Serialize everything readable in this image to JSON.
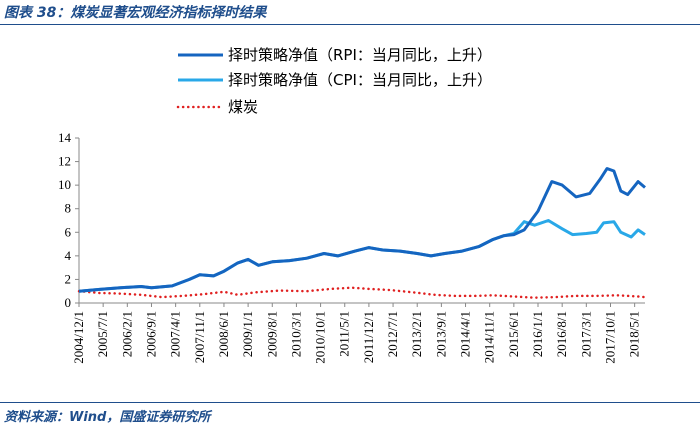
{
  "caption": "图表 38：煤炭显著宏观经济指标择时结果",
  "source": "资料来源：Wind，国盛证券研究所",
  "colors": {
    "rpi": "#1565c0",
    "cpi": "#29a8e8",
    "coal": "#e02020",
    "accent": "#1f4e8c"
  },
  "chart_data": {
    "type": "line",
    "title": "",
    "xlabel": "",
    "ylabel": "",
    "ylim": [
      0,
      14
    ],
    "yticks": [
      0,
      2,
      4,
      6,
      8,
      10,
      12,
      14
    ],
    "xlim": [
      "2004-12",
      "2018-08"
    ],
    "xticks": [
      "2004/12/1",
      "2005/7/1",
      "2006/2/1",
      "2006/9/1",
      "2007/4/1",
      "2007/11/1",
      "2008/6/1",
      "2009/1/1",
      "2009/8/1",
      "2010/3/1",
      "2010/10/1",
      "2011/5/1",
      "2011/12/1",
      "2012/7/1",
      "2013/2/1",
      "2013/9/1",
      "2014/4/1",
      "2014/11/1",
      "2015/6/1",
      "2016/1/1",
      "2016/8/1",
      "2017/3/1",
      "2017/10/1",
      "2018/5/1"
    ],
    "legend_position": "top-left",
    "grid": false,
    "series": [
      {
        "name": "择时策略净值（RPI：当月同比，上升）",
        "style": "solid",
        "color": "#1565c0",
        "points": [
          [
            "2004-12",
            1.0
          ],
          [
            "2005-06",
            1.15
          ],
          [
            "2005-12",
            1.3
          ],
          [
            "2006-06",
            1.4
          ],
          [
            "2006-09",
            1.3
          ],
          [
            "2007-03",
            1.45
          ],
          [
            "2007-08",
            2.0
          ],
          [
            "2007-11",
            2.4
          ],
          [
            "2008-03",
            2.3
          ],
          [
            "2008-06",
            2.7
          ],
          [
            "2008-10",
            3.4
          ],
          [
            "2009-01",
            3.7
          ],
          [
            "2009-04",
            3.2
          ],
          [
            "2009-08",
            3.5
          ],
          [
            "2010-01",
            3.6
          ],
          [
            "2010-06",
            3.8
          ],
          [
            "2010-11",
            4.2
          ],
          [
            "2011-03",
            4.0
          ],
          [
            "2011-08",
            4.4
          ],
          [
            "2011-12",
            4.7
          ],
          [
            "2012-04",
            4.5
          ],
          [
            "2012-09",
            4.4
          ],
          [
            "2013-02",
            4.2
          ],
          [
            "2013-06",
            4.0
          ],
          [
            "2013-10",
            4.2
          ],
          [
            "2014-03",
            4.4
          ],
          [
            "2014-08",
            4.8
          ],
          [
            "2014-12",
            5.4
          ],
          [
            "2015-03",
            5.7
          ],
          [
            "2015-06",
            5.8
          ],
          [
            "2015-09",
            6.2
          ],
          [
            "2016-01",
            7.8
          ],
          [
            "2016-05",
            10.3
          ],
          [
            "2016-08",
            10.0
          ],
          [
            "2016-12",
            9.0
          ],
          [
            "2017-04",
            9.3
          ],
          [
            "2017-07",
            10.5
          ],
          [
            "2017-09",
            11.4
          ],
          [
            "2017-11",
            11.2
          ],
          [
            "2018-01",
            9.5
          ],
          [
            "2018-03",
            9.2
          ],
          [
            "2018-06",
            10.3
          ],
          [
            "2018-08",
            9.8
          ]
        ]
      },
      {
        "name": "择时策略净值（CPI：当月同比，上升）",
        "style": "solid",
        "color": "#29a8e8",
        "points": [
          [
            "2004-12",
            1.0
          ],
          [
            "2005-06",
            1.15
          ],
          [
            "2005-12",
            1.3
          ],
          [
            "2006-06",
            1.4
          ],
          [
            "2006-09",
            1.3
          ],
          [
            "2007-03",
            1.45
          ],
          [
            "2007-08",
            2.0
          ],
          [
            "2007-11",
            2.4
          ],
          [
            "2008-03",
            2.3
          ],
          [
            "2008-06",
            2.7
          ],
          [
            "2008-10",
            3.4
          ],
          [
            "2009-01",
            3.7
          ],
          [
            "2009-04",
            3.2
          ],
          [
            "2009-08",
            3.5
          ],
          [
            "2010-01",
            3.6
          ],
          [
            "2010-06",
            3.8
          ],
          [
            "2010-11",
            4.2
          ],
          [
            "2011-03",
            4.0
          ],
          [
            "2011-08",
            4.4
          ],
          [
            "2011-12",
            4.7
          ],
          [
            "2012-04",
            4.5
          ],
          [
            "2012-09",
            4.4
          ],
          [
            "2013-02",
            4.2
          ],
          [
            "2013-06",
            4.0
          ],
          [
            "2013-10",
            4.2
          ],
          [
            "2014-03",
            4.4
          ],
          [
            "2014-08",
            4.8
          ],
          [
            "2014-12",
            5.4
          ],
          [
            "2015-03",
            5.7
          ],
          [
            "2015-06",
            5.9
          ],
          [
            "2015-09",
            6.9
          ],
          [
            "2015-12",
            6.6
          ],
          [
            "2016-04",
            7.0
          ],
          [
            "2016-08",
            6.3
          ],
          [
            "2016-11",
            5.8
          ],
          [
            "2017-03",
            5.9
          ],
          [
            "2017-06",
            6.0
          ],
          [
            "2017-08",
            6.8
          ],
          [
            "2017-11",
            6.9
          ],
          [
            "2018-01",
            6.0
          ],
          [
            "2018-04",
            5.6
          ],
          [
            "2018-06",
            6.2
          ],
          [
            "2018-08",
            5.8
          ]
        ]
      },
      {
        "name": "煤炭",
        "style": "dotted",
        "color": "#e02020",
        "points": [
          [
            "2004-12",
            1.0
          ],
          [
            "2005-06",
            0.85
          ],
          [
            "2005-12",
            0.8
          ],
          [
            "2006-06",
            0.7
          ],
          [
            "2006-12",
            0.5
          ],
          [
            "2007-06",
            0.6
          ],
          [
            "2007-12",
            0.75
          ],
          [
            "2008-06",
            0.95
          ],
          [
            "2008-10",
            0.7
          ],
          [
            "2009-03",
            0.9
          ],
          [
            "2009-10",
            1.05
          ],
          [
            "2010-06",
            1.0
          ],
          [
            "2011-01",
            1.2
          ],
          [
            "2011-07",
            1.3
          ],
          [
            "2011-12",
            1.2
          ],
          [
            "2012-06",
            1.1
          ],
          [
            "2013-01",
            0.9
          ],
          [
            "2013-07",
            0.7
          ],
          [
            "2014-01",
            0.6
          ],
          [
            "2014-07",
            0.6
          ],
          [
            "2014-12",
            0.65
          ],
          [
            "2015-06",
            0.55
          ],
          [
            "2015-12",
            0.45
          ],
          [
            "2016-06",
            0.5
          ],
          [
            "2016-12",
            0.6
          ],
          [
            "2017-06",
            0.6
          ],
          [
            "2017-12",
            0.65
          ],
          [
            "2018-06",
            0.55
          ],
          [
            "2018-08",
            0.5
          ]
        ]
      }
    ]
  }
}
